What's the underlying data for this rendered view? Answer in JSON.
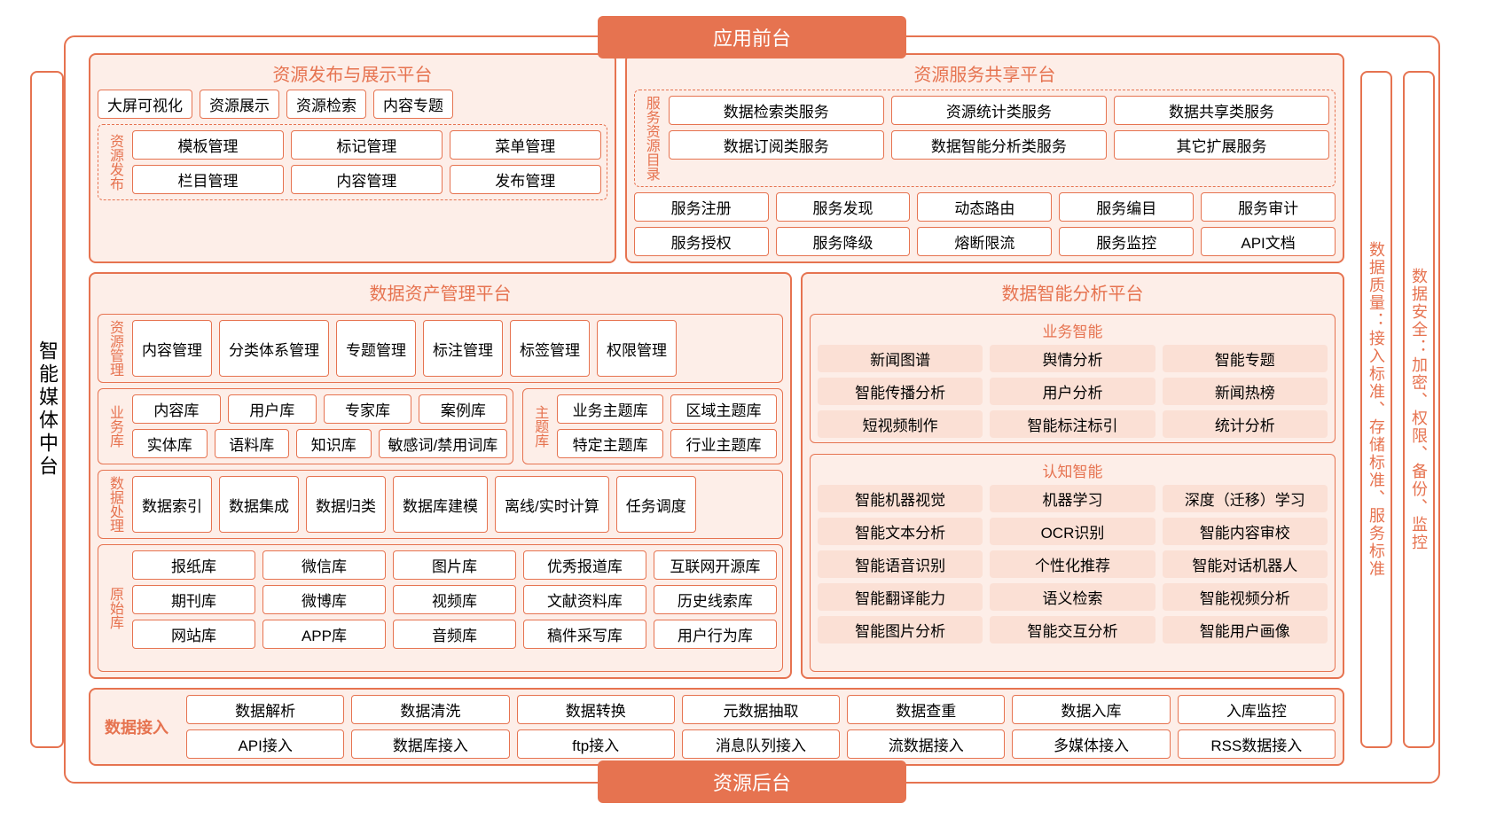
{
  "colors": {
    "primary": "#e67350",
    "panel_bg": "#fdeee8",
    "tag_peach": "#fbe0d5",
    "text": "#000000",
    "white": "#ffffff"
  },
  "banners": {
    "top": "应用前台",
    "bottom": "资源后台"
  },
  "side_labels": {
    "left": "智能媒体中台",
    "quality": "数据质量：接入标准、存储标准、服务标准",
    "security": "数据安全：加密、权限、备份、监控"
  },
  "panels": {
    "publish": {
      "title": "资源发布与展示平台",
      "top_tags": [
        "大屏可视化",
        "资源展示",
        "资源检索",
        "内容专题"
      ],
      "sub_label": "资源发布",
      "sub_rows": [
        [
          "模板管理",
          "标记管理",
          "菜单管理"
        ],
        [
          "栏目管理",
          "内容管理",
          "发布管理"
        ]
      ]
    },
    "service": {
      "title": "资源服务共享平台",
      "catalog_label": "服务资源目录",
      "catalog_rows": [
        [
          "数据检索类服务",
          "资源统计类服务",
          "数据共享类服务"
        ],
        [
          "数据订阅类服务",
          "数据智能分析类服务",
          "其它扩展服务"
        ]
      ],
      "ops_rows": [
        [
          "服务注册",
          "服务发现",
          "动态路由",
          "服务编目",
          "服务审计"
        ],
        [
          "服务授权",
          "服务降级",
          "熔断限流",
          "服务监控",
          "API文档"
        ]
      ]
    },
    "asset": {
      "title": "数据资产管理平台",
      "resource_mgmt": {
        "label": "资源管理",
        "items": [
          "内容管理",
          "分类体系管理",
          "专题管理",
          "标注管理",
          "标签管理",
          "权限管理"
        ]
      },
      "biz_lib": {
        "label": "业务库",
        "rows": [
          [
            "内容库",
            "用户库",
            "专家库",
            "案例库"
          ],
          [
            "实体库",
            "语料库",
            "知识库",
            "敏感词/禁用词库"
          ]
        ]
      },
      "topic_lib": {
        "label": "主题库",
        "rows": [
          [
            "业务主题库",
            "区域主题库"
          ],
          [
            "特定主题库",
            "行业主题库"
          ]
        ]
      },
      "data_proc": {
        "label": "数据处理",
        "items": [
          "数据索引",
          "数据集成",
          "数据归类",
          "数据库建模",
          "离线/实时计算",
          "任务调度"
        ]
      },
      "raw_lib": {
        "label": "原始库",
        "rows": [
          [
            "报纸库",
            "微信库",
            "图片库",
            "优秀报道库",
            "互联网开源库"
          ],
          [
            "期刊库",
            "微博库",
            "视频库",
            "文献资料库",
            "历史线索库"
          ],
          [
            "网站库",
            "APP库",
            "音频库",
            "稿件采写库",
            "用户行为库"
          ]
        ]
      }
    },
    "intel": {
      "title": "数据智能分析平台",
      "biz_intel": {
        "title": "业务智能",
        "rows": [
          [
            "新闻图谱",
            "舆情分析",
            "智能专题"
          ],
          [
            "智能传播分析",
            "用户分析",
            "新闻热榜"
          ],
          [
            "短视频制作",
            "智能标注标引",
            "统计分析"
          ]
        ]
      },
      "cog_intel": {
        "title": "认知智能",
        "rows": [
          [
            "智能机器视觉",
            "机器学习",
            "深度（迁移）学习"
          ],
          [
            "智能文本分析",
            "OCR识别",
            "智能内容审校"
          ],
          [
            "智能语音识别",
            "个性化推荐",
            "智能对话机器人"
          ],
          [
            "智能翻译能力",
            "语义检索",
            "智能视频分析"
          ],
          [
            "智能图片分析",
            "智能交互分析",
            "智能用户画像"
          ]
        ]
      }
    },
    "ingest": {
      "label": "数据接入",
      "rows": [
        [
          "数据解析",
          "数据清洗",
          "数据转换",
          "元数据抽取",
          "数据查重",
          "数据入库",
          "入库监控"
        ],
        [
          "API接入",
          "数据库接入",
          "ftp接入",
          "消息队列接入",
          "流数据接入",
          "多媒体接入",
          "RSS数据接入"
        ]
      ]
    }
  }
}
